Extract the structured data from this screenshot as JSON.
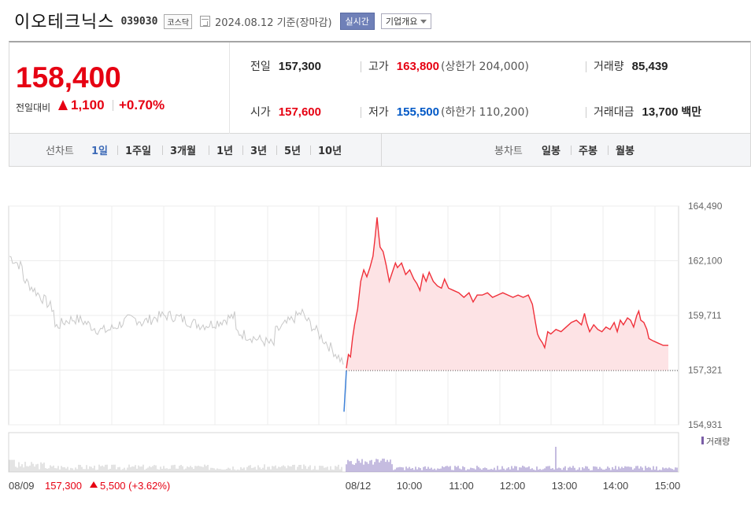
{
  "header": {
    "title": "이오테크닉스",
    "code": "039030",
    "market_badge": "코스닥",
    "date_text": "2024.08.12  기준(장마감)",
    "realtime_label": "실시간",
    "company_label": "기업개요"
  },
  "summary": {
    "price": "158,400",
    "diff_label": "전일대비",
    "diff_value": "1,100",
    "diff_pct": "+0.70%",
    "prev": {
      "label": "전일",
      "value": "157,300"
    },
    "open": {
      "label": "시가",
      "value": "157,600"
    },
    "high": {
      "label": "고가",
      "value": "163,800",
      "sub": "(상한가 204,000)"
    },
    "low": {
      "label": "저가",
      "value": "155,500",
      "sub": "(하한가 110,200)"
    },
    "volume": {
      "label": "거래량",
      "value": "85,439"
    },
    "amount": {
      "label": "거래대금",
      "value": "13,700",
      "unit": "백만"
    }
  },
  "tabs": {
    "line_label": "선차트",
    "line_items": [
      "1일",
      "1주일",
      "3개월",
      "1년",
      "3년",
      "5년",
      "10년"
    ],
    "candle_label": "봉차트",
    "candle_items": [
      "일봉",
      "주봉",
      "월봉"
    ]
  },
  "chart_data": {
    "type": "line",
    "y_ticks": [
      "164,490",
      "162,100",
      "159,711",
      "157,321",
      "154,931"
    ],
    "ylim": [
      154931,
      164490
    ],
    "baseline": 157300,
    "x_labels": [
      "08/12",
      "10:00",
      "11:00",
      "12:00",
      "13:00",
      "14:00",
      "15:00"
    ],
    "prev_day_label": "08/09",
    "prev_day_summary": "157,300",
    "prev_day_change": "5,500 (+3.62%)",
    "volume_legend": "거래량",
    "series": [
      {
        "values": [
          [
            9.0,
            157400
          ],
          [
            9.04,
            158000
          ],
          [
            9.08,
            157900
          ],
          [
            9.12,
            158700
          ],
          [
            9.16,
            159300
          ],
          [
            9.22,
            160000
          ],
          [
            9.28,
            161200
          ],
          [
            9.34,
            161700
          ],
          [
            9.4,
            161400
          ],
          [
            9.46,
            161800
          ],
          [
            9.52,
            162300
          ],
          [
            9.56,
            163100
          ],
          [
            9.6,
            164000
          ],
          [
            9.63,
            163300
          ],
          [
            9.66,
            162700
          ],
          [
            9.72,
            162500
          ],
          [
            9.78,
            161900
          ],
          [
            9.84,
            161200
          ],
          [
            9.9,
            161600
          ],
          [
            9.96,
            162000
          ],
          [
            10.0,
            161800
          ],
          [
            10.08,
            162000
          ],
          [
            10.16,
            161500
          ],
          [
            10.24,
            161700
          ],
          [
            10.32,
            161300
          ],
          [
            10.38,
            161100
          ],
          [
            10.44,
            160800
          ],
          [
            10.5,
            161500
          ],
          [
            10.56,
            161200
          ],
          [
            10.62,
            161600
          ],
          [
            10.7,
            161200
          ],
          [
            10.78,
            161000
          ],
          [
            10.86,
            160900
          ],
          [
            10.92,
            161300
          ],
          [
            11.0,
            160900
          ],
          [
            11.1,
            160800
          ],
          [
            11.2,
            160700
          ],
          [
            11.3,
            160500
          ],
          [
            11.4,
            160700
          ],
          [
            11.48,
            160300
          ],
          [
            11.56,
            160600
          ],
          [
            11.66,
            160600
          ],
          [
            11.76,
            160700
          ],
          [
            11.86,
            160500
          ],
          [
            11.96,
            160600
          ],
          [
            12.06,
            160700
          ],
          [
            12.16,
            160600
          ],
          [
            12.26,
            160500
          ],
          [
            12.36,
            160600
          ],
          [
            12.46,
            160500
          ],
          [
            12.56,
            160600
          ],
          [
            12.64,
            160200
          ],
          [
            12.7,
            159400
          ],
          [
            12.74,
            158900
          ],
          [
            12.78,
            158700
          ],
          [
            12.84,
            158500
          ],
          [
            12.88,
            158300
          ],
          [
            12.94,
            159000
          ],
          [
            13.0,
            158900
          ],
          [
            13.1,
            159100
          ],
          [
            13.2,
            159000
          ],
          [
            13.3,
            159200
          ],
          [
            13.4,
            159400
          ],
          [
            13.5,
            159500
          ],
          [
            13.6,
            159300
          ],
          [
            13.66,
            159800
          ],
          [
            13.7,
            159400
          ],
          [
            13.76,
            159000
          ],
          [
            13.84,
            159300
          ],
          [
            13.92,
            159100
          ],
          [
            14.0,
            159000
          ],
          [
            14.08,
            159200
          ],
          [
            14.16,
            159100
          ],
          [
            14.24,
            159400
          ],
          [
            14.3,
            159000
          ],
          [
            14.36,
            159500
          ],
          [
            14.42,
            159300
          ],
          [
            14.5,
            159600
          ],
          [
            14.56,
            159500
          ],
          [
            14.62,
            159200
          ],
          [
            14.68,
            159700
          ],
          [
            14.72,
            159900
          ],
          [
            14.76,
            159500
          ],
          [
            14.82,
            159400
          ],
          [
            14.88,
            159100
          ],
          [
            14.92,
            158700
          ],
          [
            15.0,
            158600
          ],
          [
            15.1,
            158500
          ],
          [
            15.2,
            158400
          ],
          [
            15.3,
            158400
          ]
        ]
      }
    ]
  }
}
